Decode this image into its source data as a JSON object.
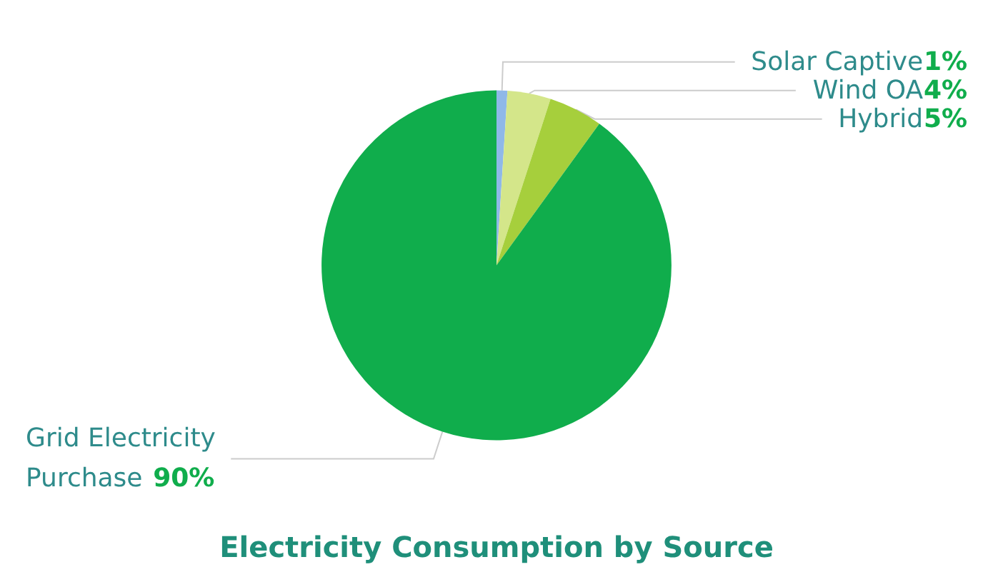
{
  "chart_data": {
    "type": "pie",
    "title": "Electricity Consumption by Source",
    "categories": [
      "Solar Captive",
      "Wind OA",
      "Hybrid",
      "Grid Electricity Purchase"
    ],
    "values": [
      1,
      4,
      5,
      90
    ],
    "value_labels": [
      "1%",
      "4%",
      "5%",
      "90%"
    ],
    "colors": [
      "#8fb8e8",
      "#d4e68a",
      "#a6cf3c",
      "#10ad4c"
    ],
    "legend": false
  }
}
